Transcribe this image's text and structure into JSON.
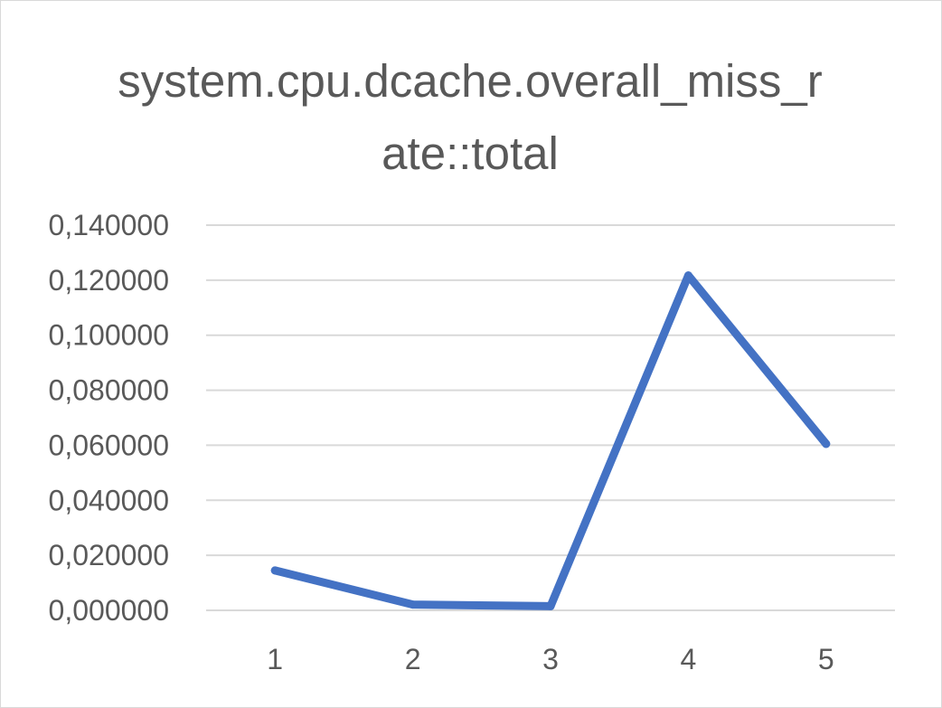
{
  "chart_data": {
    "type": "line",
    "title": "system.cpu.dcache.overall_miss_rate::total",
    "xlabel": "",
    "ylabel": "",
    "categories": [
      "1",
      "2",
      "3",
      "4",
      "5"
    ],
    "series": [
      {
        "values": [
          0.0145,
          0.0021,
          0.0015,
          0.1217,
          0.0605
        ]
      }
    ],
    "ylim": [
      0,
      0.14
    ],
    "yticks": [
      0,
      0.02,
      0.04,
      0.06,
      0.08,
      0.1,
      0.12,
      0.14
    ],
    "ytick_labels": [
      "0,000000",
      "0,020000",
      "0,040000",
      "0,060000",
      "0,080000",
      "0,100000",
      "0,120000",
      "0,140000"
    ],
    "grid": true,
    "legend": "none",
    "colors": {
      "line": "#4472c4",
      "grid": "#d9d9d9",
      "text": "#595959"
    }
  }
}
